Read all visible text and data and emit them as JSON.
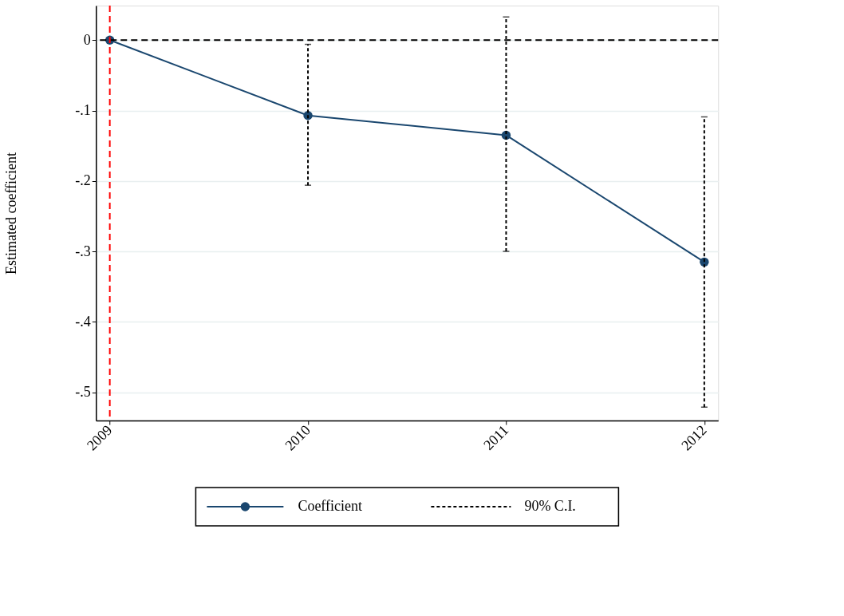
{
  "chart_data": {
    "type": "line",
    "ylabel": "Estimated coefficient",
    "x": [
      2009,
      2010,
      2011,
      2012
    ],
    "series": [
      {
        "name": "Coefficient",
        "color": "#1a476f",
        "marker": "circle",
        "values": [
          0,
          -0.107,
          -0.135,
          -0.315
        ],
        "errors": [
          null,
          [
            -0.206,
            -0.006
          ],
          [
            -0.3,
            0.033
          ],
          [
            -0.521,
            -0.109
          ]
        ]
      }
    ],
    "annotations": [
      "90% C.I."
    ],
    "xlim": [
      2008.93,
      2012.07
    ],
    "xticks": [
      2009,
      2010,
      2011,
      2012
    ],
    "ylim": [
      -0.54,
      0.049
    ],
    "yticks": [
      {
        "value": -0.5,
        "label": "-.5"
      },
      {
        "value": -0.4,
        "label": "-.4"
      },
      {
        "value": -0.3,
        "label": "-.3"
      },
      {
        "value": -0.2,
        "label": "-.2"
      },
      {
        "value": -0.1,
        "label": "-.1"
      },
      {
        "value": 0,
        "label": "0"
      }
    ],
    "ref_lines": [
      {
        "axis": "y",
        "value": 0,
        "color": "#000000",
        "line_style": "dashed"
      },
      {
        "axis": "x",
        "value": 2009,
        "color": "#ff0000",
        "line_style": "dashed"
      }
    ],
    "grid": "y",
    "legend": "bottom"
  }
}
